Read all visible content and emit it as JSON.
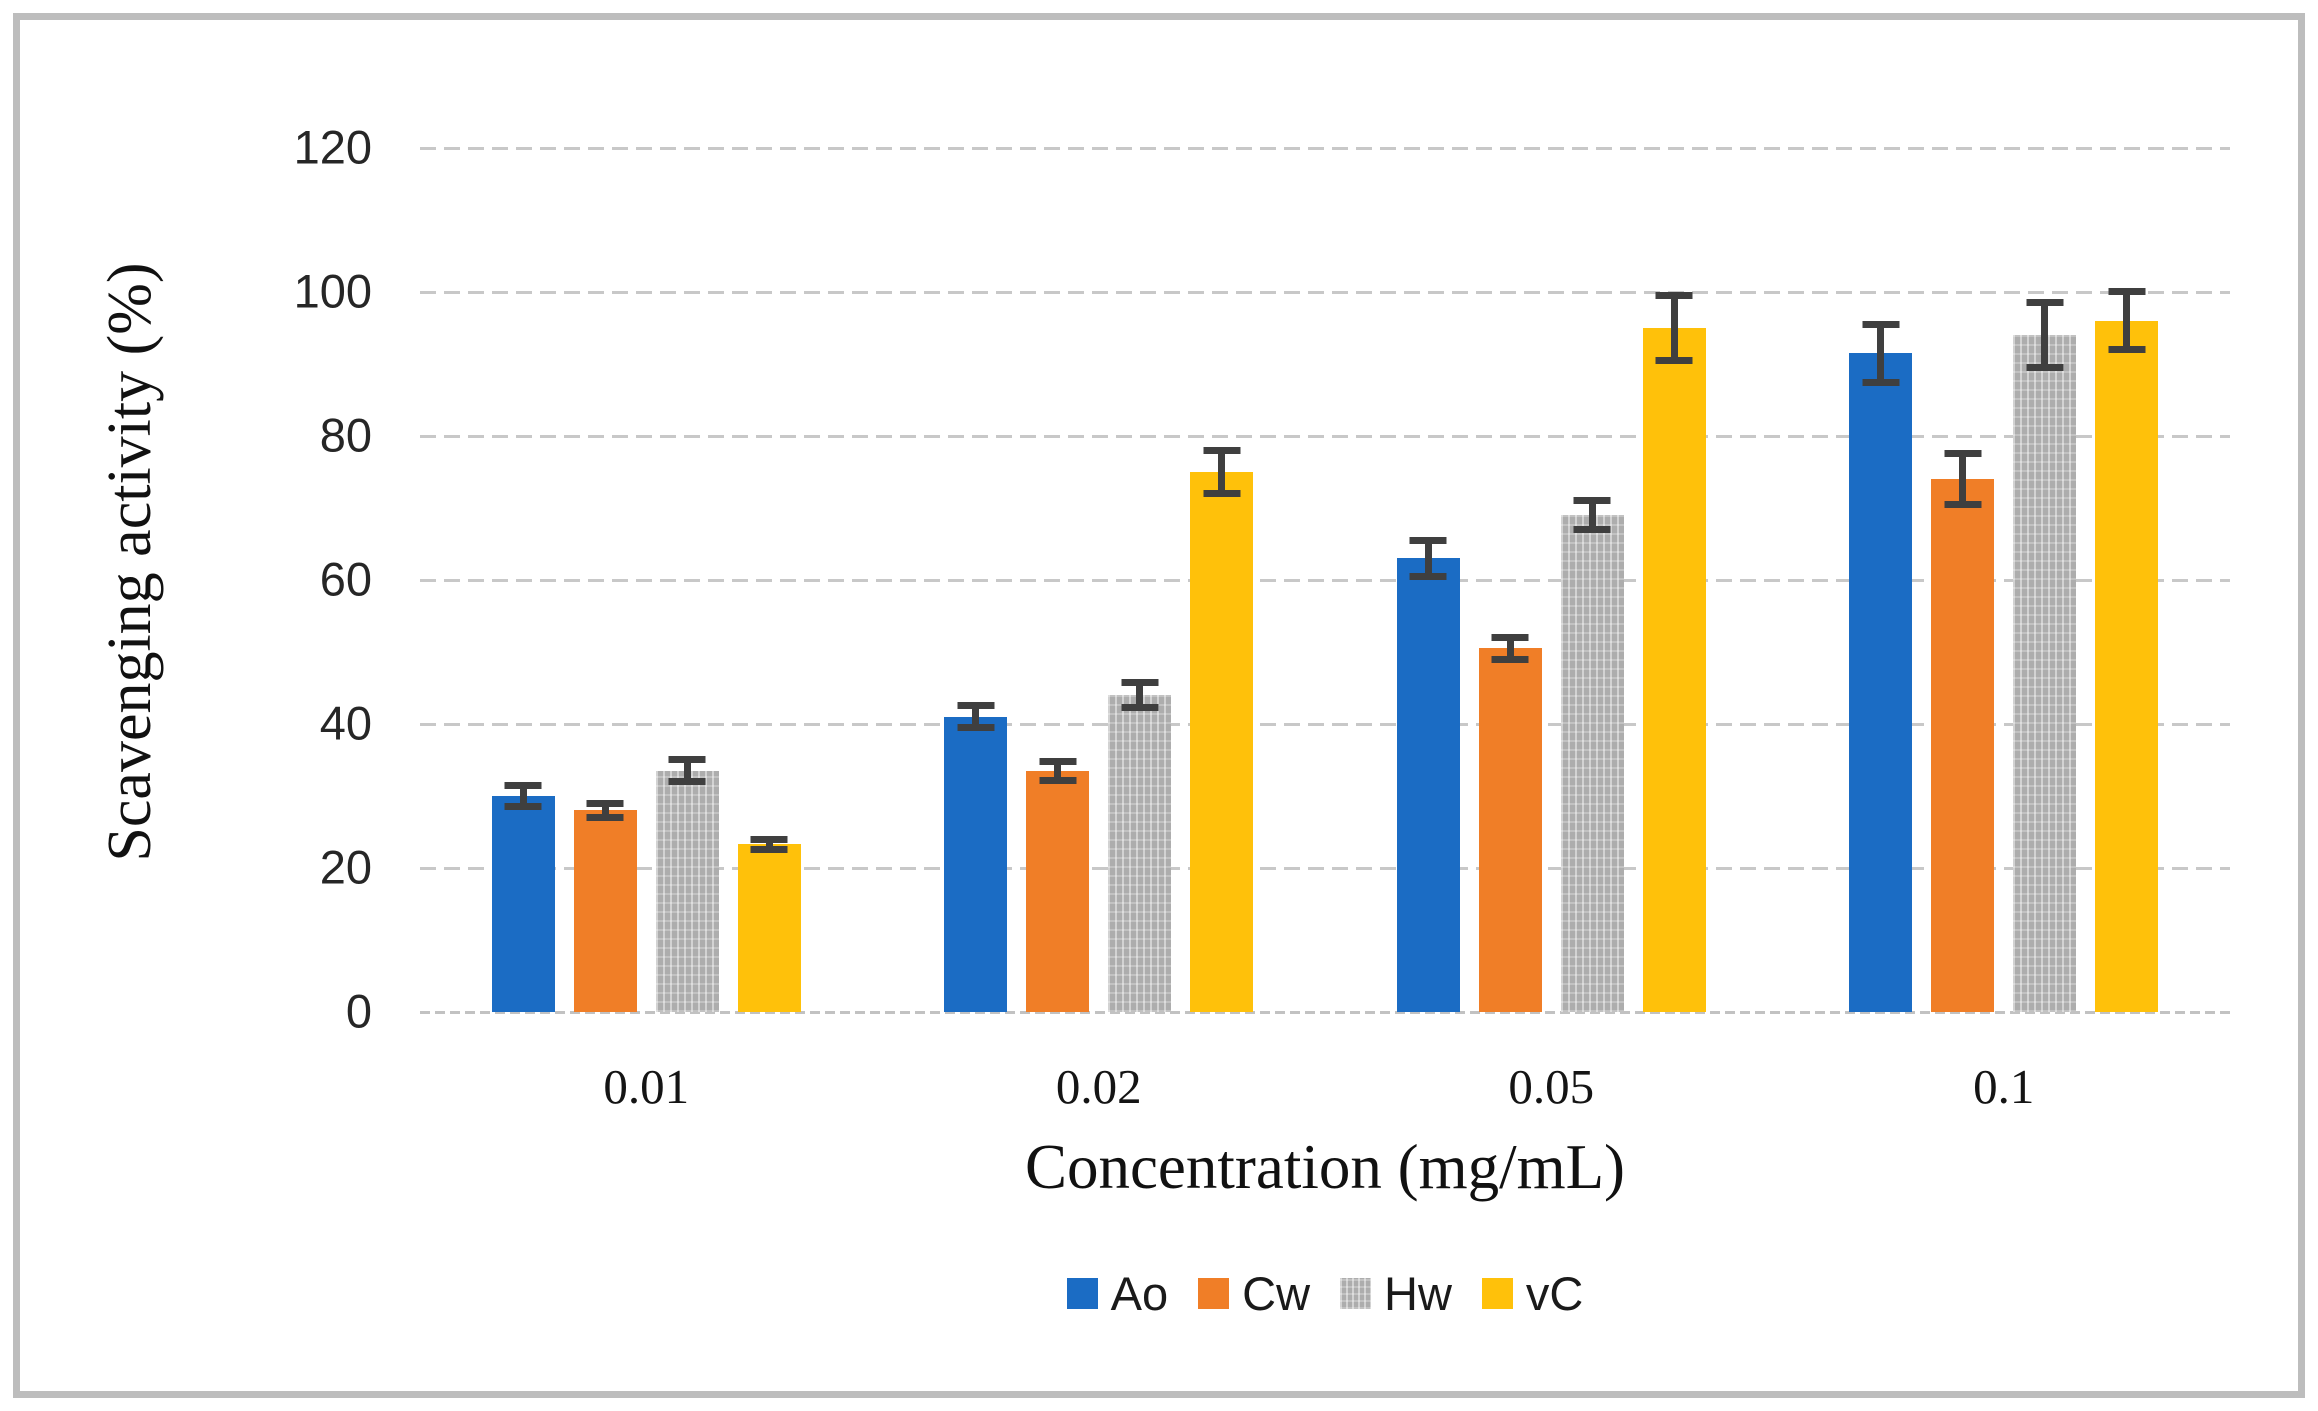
{
  "chart_data": {
    "type": "bar",
    "title": "",
    "categories": [
      "0.01",
      "0.02",
      "0.05",
      "0.1"
    ],
    "series": [
      {
        "name": "Ao",
        "color": "#1B6CC4",
        "pattern": false,
        "values": [
          30,
          41,
          63,
          91.5
        ],
        "errors": [
          2,
          2,
          3,
          4.5
        ]
      },
      {
        "name": "Cw",
        "color": "#F07E27",
        "pattern": false,
        "values": [
          28,
          33.5,
          50.5,
          74
        ],
        "errors": [
          1.5,
          1.8,
          2,
          4
        ]
      },
      {
        "name": "Hw",
        "color": "#ADADAD",
        "pattern": true,
        "values": [
          33.5,
          44,
          69,
          94
        ],
        "errors": [
          2,
          2.2,
          2.5,
          5
        ]
      },
      {
        "name": "vC",
        "color": "#FFC10A",
        "pattern": false,
        "values": [
          23.3,
          75,
          95,
          96
        ],
        "errors": [
          1.2,
          3.5,
          5,
          4.5
        ]
      }
    ],
    "xlabel": "Concentration (mg/mL)",
    "ylabel": "Scavenging activity (%)",
    "ylim": [
      0,
      120
    ],
    "yticks": [
      0,
      20,
      40,
      60,
      80,
      100,
      120
    ],
    "grid": "horizontal dashed",
    "legend_position": "bottom",
    "error_bars": true
  },
  "colors": {
    "gridline": "#C8C8C8",
    "baseline": "#C2C2C2",
    "error_bar": "#3F3F3F",
    "tick_text": "#262626",
    "axis_title_text": "#111111",
    "frame_border": "#BDBDBD",
    "background": "#FFFFFF"
  }
}
